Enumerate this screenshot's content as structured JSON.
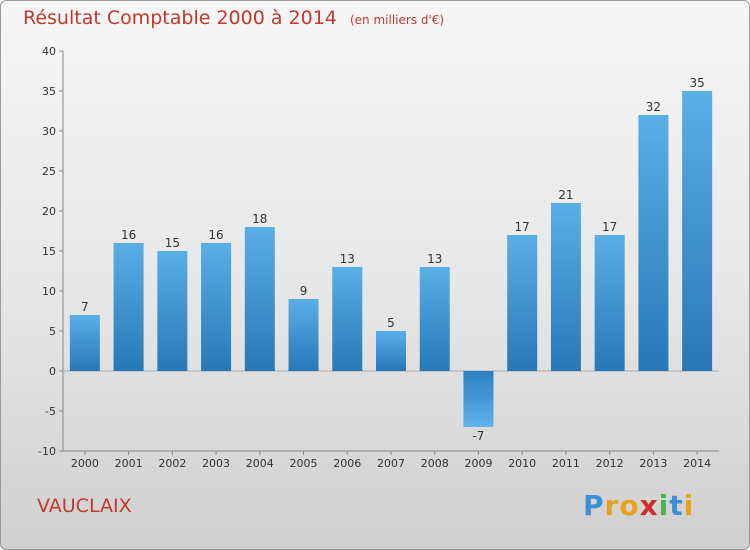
{
  "chart_data": {
    "type": "bar",
    "title": "Résultat Comptable 2000 à 2014",
    "subtitle": "(en milliers d'€)",
    "categories": [
      "2000",
      "2001",
      "2002",
      "2003",
      "2004",
      "2005",
      "2006",
      "2007",
      "2008",
      "2009",
      "2010",
      "2011",
      "2012",
      "2013",
      "2014"
    ],
    "values": [
      7,
      16,
      15,
      16,
      18,
      9,
      13,
      5,
      13,
      -7,
      17,
      21,
      17,
      32,
      35
    ],
    "ylim": [
      -10,
      40
    ],
    "yticks": [
      -10,
      -5,
      0,
      5,
      10,
      15,
      20,
      25,
      30,
      35,
      40
    ],
    "xlabel": "",
    "ylabel": "",
    "grid": false,
    "colors": {
      "bar_top": "#5aaee6",
      "bar_bottom": "#2878b8",
      "neg_top": "#2a7fc0",
      "neg_bottom": "#5fb3ea",
      "accent": "#c0392b"
    }
  },
  "footer": {
    "place": "VAUCLAIX",
    "brand_letters": [
      {
        "ch": "P",
        "color": "#3a8fd6"
      },
      {
        "ch": "r",
        "color": "#e8a21c"
      },
      {
        "ch": "o",
        "color": "#e8a21c"
      },
      {
        "ch": "x",
        "color": "#cf2e2e"
      },
      {
        "ch": "i",
        "color": "#4caf50"
      },
      {
        "ch": "t",
        "color": "#3a8fd6"
      },
      {
        "ch": "i",
        "color": "#e8a21c"
      }
    ]
  }
}
